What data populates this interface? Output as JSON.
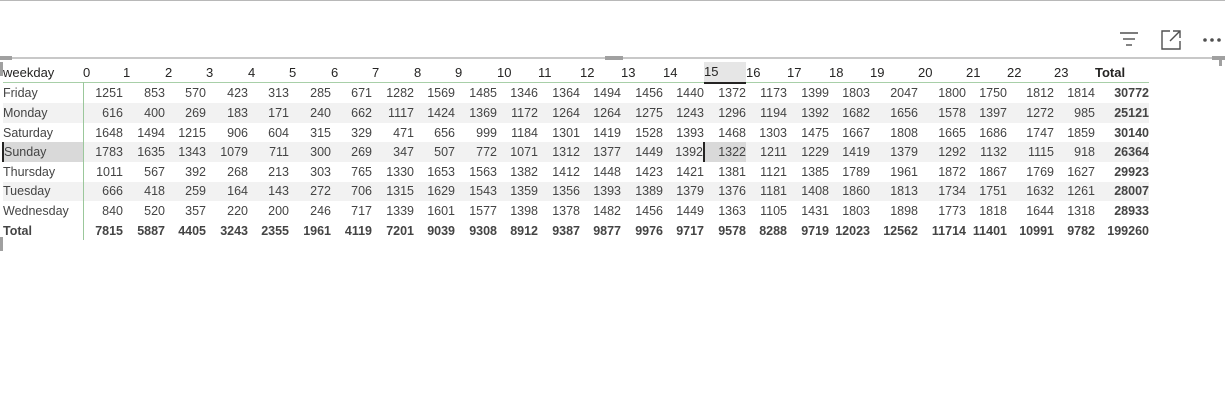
{
  "header_icons": [
    "filter-icon",
    "focus-mode-icon",
    "more-options-icon"
  ],
  "matrix": {
    "corner_label": "weekday",
    "columns": [
      "0",
      "1",
      "2",
      "3",
      "4",
      "5",
      "6",
      "7",
      "8",
      "9",
      "10",
      "11",
      "12",
      "13",
      "14",
      "15",
      "16",
      "17",
      "18",
      "19",
      "20",
      "21",
      "22",
      "23"
    ],
    "total_label": "Total",
    "selected_column": "15",
    "selected_row": "Sunday",
    "rows": [
      {
        "label": "Friday",
        "values": [
          "1251",
          "853",
          "570",
          "423",
          "313",
          "285",
          "671",
          "1282",
          "1569",
          "1485",
          "1346",
          "1364",
          "1494",
          "1456",
          "1440",
          "1372",
          "1173",
          "1399",
          "1803",
          "2047",
          "1800",
          "1750",
          "1812",
          "1814"
        ],
        "total": "30772"
      },
      {
        "label": "Monday",
        "values": [
          "616",
          "400",
          "269",
          "183",
          "171",
          "240",
          "662",
          "1117",
          "1424",
          "1369",
          "1172",
          "1264",
          "1264",
          "1275",
          "1243",
          "1296",
          "1194",
          "1392",
          "1682",
          "1656",
          "1578",
          "1397",
          "1272",
          "985"
        ],
        "total": "25121"
      },
      {
        "label": "Saturday",
        "values": [
          "1648",
          "1494",
          "1215",
          "906",
          "604",
          "315",
          "329",
          "471",
          "656",
          "999",
          "1184",
          "1301",
          "1419",
          "1528",
          "1393",
          "1468",
          "1303",
          "1475",
          "1667",
          "1808",
          "1665",
          "1686",
          "1747",
          "1859"
        ],
        "total": "30140"
      },
      {
        "label": "Sunday",
        "values": [
          "1783",
          "1635",
          "1343",
          "1079",
          "711",
          "300",
          "269",
          "347",
          "507",
          "772",
          "1071",
          "1312",
          "1377",
          "1449",
          "1392",
          "1322",
          "1211",
          "1229",
          "1419",
          "1379",
          "1292",
          "1132",
          "1115",
          "918"
        ],
        "total": "26364"
      },
      {
        "label": "Thursday",
        "values": [
          "1011",
          "567",
          "392",
          "268",
          "213",
          "303",
          "765",
          "1330",
          "1653",
          "1563",
          "1382",
          "1412",
          "1448",
          "1423",
          "1421",
          "1381",
          "1121",
          "1385",
          "1789",
          "1961",
          "1872",
          "1867",
          "1769",
          "1627"
        ],
        "total": "29923"
      },
      {
        "label": "Tuesday",
        "values": [
          "666",
          "418",
          "259",
          "164",
          "143",
          "272",
          "706",
          "1315",
          "1629",
          "1543",
          "1359",
          "1356",
          "1393",
          "1389",
          "1379",
          "1376",
          "1181",
          "1408",
          "1860",
          "1813",
          "1734",
          "1751",
          "1632",
          "1261"
        ],
        "total": "28007"
      },
      {
        "label": "Wednesday",
        "values": [
          "840",
          "520",
          "357",
          "220",
          "200",
          "246",
          "717",
          "1339",
          "1601",
          "1577",
          "1398",
          "1378",
          "1482",
          "1456",
          "1449",
          "1363",
          "1105",
          "1431",
          "1803",
          "1898",
          "1773",
          "1818",
          "1644",
          "1318"
        ],
        "total": "28933"
      }
    ],
    "totals_row": {
      "label": "Total",
      "values": [
        "7815",
        "5887",
        "4405",
        "3243",
        "2355",
        "1961",
        "4119",
        "7201",
        "9039",
        "9308",
        "8912",
        "9387",
        "9877",
        "9976",
        "9717",
        "9578",
        "8288",
        "9719",
        "12023",
        "12562",
        "11714",
        "11401",
        "10991",
        "9782"
      ],
      "total": "199260"
    }
  }
}
